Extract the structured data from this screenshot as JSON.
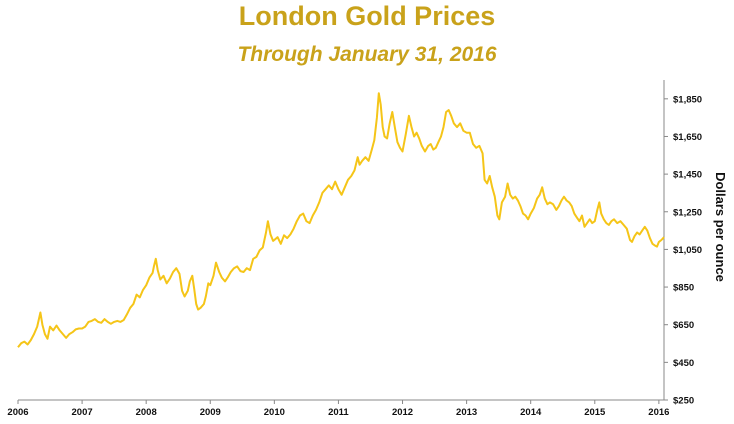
{
  "chart_data": {
    "type": "line",
    "title": "London Gold Prices",
    "subtitle": "Through January 31, 2016",
    "xlabel": "",
    "ylabel": "Dollars per ounce",
    "x_ticks": [
      "2006",
      "2007",
      "2008",
      "2009",
      "2010",
      "2011",
      "2012",
      "2013",
      "2014",
      "2015",
      "2016"
    ],
    "y_ticks": [
      "$250",
      "$450",
      "$650",
      "$850",
      "$1,050",
      "$1,250",
      "$1,450",
      "$1,650",
      "$1,850"
    ],
    "xlim": [
      2006.0,
      2016.08
    ],
    "ylim": [
      250,
      1950
    ],
    "line_color": "#f5c518",
    "grid": false,
    "series": [
      {
        "name": "",
        "points": [
          [
            2006.0,
            530
          ],
          [
            2006.05,
            552
          ],
          [
            2006.1,
            560
          ],
          [
            2006.15,
            545
          ],
          [
            2006.2,
            568
          ],
          [
            2006.25,
            600
          ],
          [
            2006.3,
            640
          ],
          [
            2006.35,
            715
          ],
          [
            2006.38,
            650
          ],
          [
            2006.42,
            600
          ],
          [
            2006.46,
            575
          ],
          [
            2006.5,
            640
          ],
          [
            2006.55,
            620
          ],
          [
            2006.6,
            645
          ],
          [
            2006.65,
            620
          ],
          [
            2006.7,
            600
          ],
          [
            2006.75,
            580
          ],
          [
            2006.8,
            600
          ],
          [
            2006.85,
            610
          ],
          [
            2006.9,
            625
          ],
          [
            2006.95,
            630
          ],
          [
            2007.0,
            630
          ],
          [
            2007.05,
            640
          ],
          [
            2007.1,
            665
          ],
          [
            2007.15,
            670
          ],
          [
            2007.2,
            680
          ],
          [
            2007.25,
            665
          ],
          [
            2007.3,
            660
          ],
          [
            2007.35,
            680
          ],
          [
            2007.4,
            665
          ],
          [
            2007.45,
            655
          ],
          [
            2007.5,
            665
          ],
          [
            2007.55,
            670
          ],
          [
            2007.6,
            665
          ],
          [
            2007.65,
            675
          ],
          [
            2007.7,
            705
          ],
          [
            2007.75,
            740
          ],
          [
            2007.8,
            760
          ],
          [
            2007.85,
            810
          ],
          [
            2007.9,
            795
          ],
          [
            2007.95,
            835
          ],
          [
            2008.0,
            860
          ],
          [
            2008.05,
            900
          ],
          [
            2008.1,
            925
          ],
          [
            2008.12,
            960
          ],
          [
            2008.15,
            1000
          ],
          [
            2008.18,
            940
          ],
          [
            2008.22,
            890
          ],
          [
            2008.27,
            910
          ],
          [
            2008.32,
            870
          ],
          [
            2008.37,
            895
          ],
          [
            2008.42,
            930
          ],
          [
            2008.47,
            950
          ],
          [
            2008.52,
            920
          ],
          [
            2008.56,
            830
          ],
          [
            2008.6,
            800
          ],
          [
            2008.65,
            830
          ],
          [
            2008.68,
            880
          ],
          [
            2008.72,
            910
          ],
          [
            2008.75,
            840
          ],
          [
            2008.78,
            760
          ],
          [
            2008.81,
            730
          ],
          [
            2008.85,
            740
          ],
          [
            2008.9,
            760
          ],
          [
            2008.93,
            800
          ],
          [
            2008.97,
            870
          ],
          [
            2009.0,
            860
          ],
          [
            2009.05,
            910
          ],
          [
            2009.09,
            980
          ],
          [
            2009.14,
            930
          ],
          [
            2009.18,
            900
          ],
          [
            2009.23,
            880
          ],
          [
            2009.27,
            900
          ],
          [
            2009.32,
            930
          ],
          [
            2009.37,
            950
          ],
          [
            2009.42,
            960
          ],
          [
            2009.47,
            935
          ],
          [
            2009.52,
            930
          ],
          [
            2009.57,
            950
          ],
          [
            2009.62,
            940
          ],
          [
            2009.67,
            1000
          ],
          [
            2009.72,
            1010
          ],
          [
            2009.77,
            1045
          ],
          [
            2009.82,
            1060
          ],
          [
            2009.87,
            1140
          ],
          [
            2009.9,
            1200
          ],
          [
            2009.94,
            1130
          ],
          [
            2009.98,
            1095
          ],
          [
            2010.0,
            1100
          ],
          [
            2010.05,
            1115
          ],
          [
            2010.1,
            1080
          ],
          [
            2010.15,
            1125
          ],
          [
            2010.2,
            1110
          ],
          [
            2010.25,
            1130
          ],
          [
            2010.3,
            1160
          ],
          [
            2010.35,
            1200
          ],
          [
            2010.4,
            1230
          ],
          [
            2010.45,
            1240
          ],
          [
            2010.5,
            1200
          ],
          [
            2010.55,
            1190
          ],
          [
            2010.6,
            1230
          ],
          [
            2010.65,
            1260
          ],
          [
            2010.7,
            1300
          ],
          [
            2010.75,
            1350
          ],
          [
            2010.8,
            1370
          ],
          [
            2010.85,
            1390
          ],
          [
            2010.9,
            1370
          ],
          [
            2010.95,
            1410
          ],
          [
            2011.0,
            1370
          ],
          [
            2011.05,
            1340
          ],
          [
            2011.1,
            1380
          ],
          [
            2011.15,
            1420
          ],
          [
            2011.2,
            1440
          ],
          [
            2011.25,
            1470
          ],
          [
            2011.3,
            1540
          ],
          [
            2011.33,
            1500
          ],
          [
            2011.37,
            1520
          ],
          [
            2011.42,
            1540
          ],
          [
            2011.47,
            1520
          ],
          [
            2011.52,
            1580
          ],
          [
            2011.56,
            1630
          ],
          [
            2011.6,
            1750
          ],
          [
            2011.63,
            1880
          ],
          [
            2011.66,
            1820
          ],
          [
            2011.69,
            1700
          ],
          [
            2011.72,
            1650
          ],
          [
            2011.76,
            1640
          ],
          [
            2011.8,
            1720
          ],
          [
            2011.84,
            1780
          ],
          [
            2011.88,
            1700
          ],
          [
            2011.92,
            1620
          ],
          [
            2011.96,
            1590
          ],
          [
            2012.0,
            1570
          ],
          [
            2012.05,
            1660
          ],
          [
            2012.1,
            1760
          ],
          [
            2012.14,
            1700
          ],
          [
            2012.18,
            1650
          ],
          [
            2012.22,
            1670
          ],
          [
            2012.26,
            1640
          ],
          [
            2012.3,
            1600
          ],
          [
            2012.35,
            1570
          ],
          [
            2012.4,
            1600
          ],
          [
            2012.44,
            1610
          ],
          [
            2012.48,
            1580
          ],
          [
            2012.52,
            1590
          ],
          [
            2012.56,
            1620
          ],
          [
            2012.6,
            1650
          ],
          [
            2012.64,
            1700
          ],
          [
            2012.68,
            1780
          ],
          [
            2012.72,
            1790
          ],
          [
            2012.76,
            1760
          ],
          [
            2012.8,
            1720
          ],
          [
            2012.85,
            1700
          ],
          [
            2012.9,
            1720
          ],
          [
            2012.95,
            1680
          ],
          [
            2013.0,
            1670
          ],
          [
            2013.05,
            1670
          ],
          [
            2013.1,
            1610
          ],
          [
            2013.15,
            1590
          ],
          [
            2013.2,
            1600
          ],
          [
            2013.25,
            1560
          ],
          [
            2013.28,
            1420
          ],
          [
            2013.32,
            1400
          ],
          [
            2013.36,
            1440
          ],
          [
            2013.4,
            1380
          ],
          [
            2013.44,
            1330
          ],
          [
            2013.48,
            1230
          ],
          [
            2013.51,
            1210
          ],
          [
            2013.55,
            1300
          ],
          [
            2013.6,
            1330
          ],
          [
            2013.64,
            1400
          ],
          [
            2013.68,
            1340
          ],
          [
            2013.72,
            1320
          ],
          [
            2013.76,
            1330
          ],
          [
            2013.8,
            1310
          ],
          [
            2013.84,
            1280
          ],
          [
            2013.88,
            1240
          ],
          [
            2013.92,
            1230
          ],
          [
            2013.96,
            1210
          ],
          [
            2014.0,
            1240
          ],
          [
            2014.05,
            1270
          ],
          [
            2014.1,
            1320
          ],
          [
            2014.14,
            1340
          ],
          [
            2014.18,
            1380
          ],
          [
            2014.22,
            1320
          ],
          [
            2014.26,
            1290
          ],
          [
            2014.3,
            1300
          ],
          [
            2014.35,
            1290
          ],
          [
            2014.4,
            1260
          ],
          [
            2014.44,
            1280
          ],
          [
            2014.48,
            1310
          ],
          [
            2014.52,
            1330
          ],
          [
            2014.56,
            1310
          ],
          [
            2014.6,
            1300
          ],
          [
            2014.64,
            1280
          ],
          [
            2014.68,
            1240
          ],
          [
            2014.72,
            1220
          ],
          [
            2014.76,
            1200
          ],
          [
            2014.8,
            1230
          ],
          [
            2014.84,
            1170
          ],
          [
            2014.88,
            1190
          ],
          [
            2014.92,
            1210
          ],
          [
            2014.96,
            1190
          ],
          [
            2015.0,
            1200
          ],
          [
            2015.04,
            1260
          ],
          [
            2015.07,
            1300
          ],
          [
            2015.1,
            1240
          ],
          [
            2015.14,
            1210
          ],
          [
            2015.18,
            1190
          ],
          [
            2015.22,
            1180
          ],
          [
            2015.26,
            1200
          ],
          [
            2015.3,
            1210
          ],
          [
            2015.35,
            1190
          ],
          [
            2015.4,
            1200
          ],
          [
            2015.45,
            1180
          ],
          [
            2015.5,
            1160
          ],
          [
            2015.55,
            1100
          ],
          [
            2015.58,
            1090
          ],
          [
            2015.62,
            1120
          ],
          [
            2015.66,
            1140
          ],
          [
            2015.7,
            1130
          ],
          [
            2015.74,
            1150
          ],
          [
            2015.78,
            1170
          ],
          [
            2015.82,
            1150
          ],
          [
            2015.86,
            1110
          ],
          [
            2015.9,
            1080
          ],
          [
            2015.94,
            1070
          ],
          [
            2015.97,
            1065
          ],
          [
            2016.0,
            1090
          ],
          [
            2016.04,
            1100
          ],
          [
            2016.08,
            1115
          ]
        ]
      }
    ]
  }
}
